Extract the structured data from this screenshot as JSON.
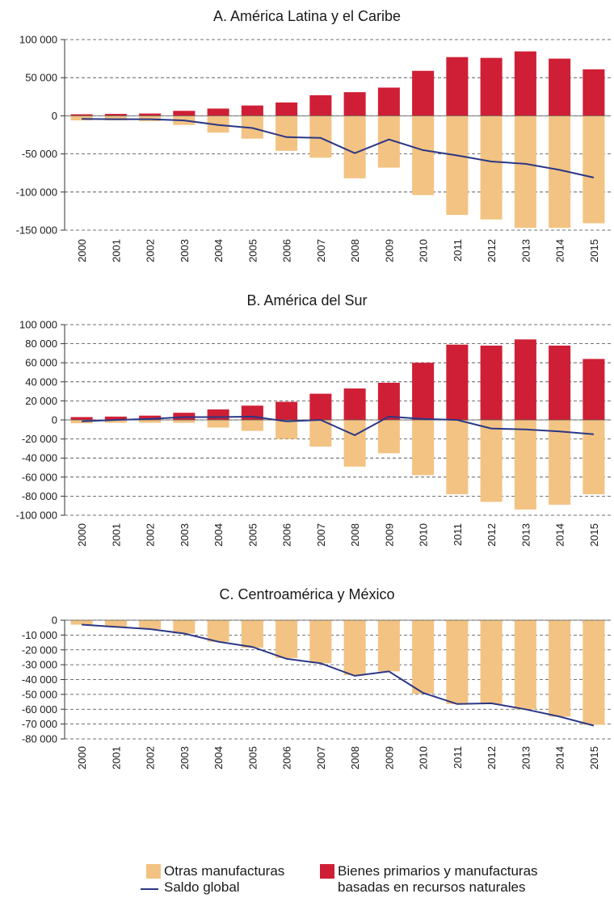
{
  "chart_data": [
    {
      "type": "bar",
      "title": "A. América Latina y el Caribe",
      "categories": [
        "2000",
        "2001",
        "2002",
        "2003",
        "2004",
        "2005",
        "2006",
        "2007",
        "2008",
        "2009",
        "2010",
        "2011",
        "2012",
        "2013",
        "2014",
        "2015"
      ],
      "ylim": [
        -150000,
        100000
      ],
      "yticks": [
        100000,
        50000,
        0,
        -50000,
        -100000,
        -150000
      ],
      "ytick_labels": [
        "100 000",
        "50 000",
        "0",
        "-50 000",
        "-100 000",
        "-150 000"
      ],
      "grid": true,
      "series": [
        {
          "name": "Bienes primarios y manufacturas basadas en recursos naturales",
          "kind": "bar",
          "color": "#cf1f36",
          "values": [
            2000,
            2500,
            3000,
            6500,
            9500,
            13500,
            17500,
            27000,
            31000,
            37000,
            59000,
            77000,
            76000,
            84500,
            75000,
            61000
          ]
        },
        {
          "name": "Otras manufacturas",
          "kind": "bar",
          "color": "#f3c383",
          "values": [
            -6000,
            -6000,
            -7000,
            -12000,
            -22000,
            -30000,
            -46000,
            -55000,
            -82000,
            -68000,
            -104000,
            -130000,
            -136000,
            -147000,
            -147000,
            -141000
          ]
        },
        {
          "name": "Saldo global",
          "kind": "line",
          "color": "#2b3784",
          "values": [
            -4000,
            -4500,
            -4500,
            -6000,
            -12000,
            -16000,
            -28000,
            -29000,
            -49000,
            -31000,
            -45000,
            -52000,
            -60000,
            -63000,
            -71000,
            -81000
          ]
        }
      ]
    },
    {
      "type": "bar",
      "title": "B. América del Sur",
      "categories": [
        "2000",
        "2001",
        "2002",
        "2003",
        "2004",
        "2005",
        "2006",
        "2007",
        "2008",
        "2009",
        "2010",
        "2011",
        "2012",
        "2013",
        "2014",
        "2015"
      ],
      "ylim": [
        -100000,
        100000
      ],
      "yticks": [
        100000,
        80000,
        60000,
        40000,
        20000,
        0,
        -20000,
        -40000,
        -60000,
        -80000,
        -100000
      ],
      "ytick_labels": [
        "100 000",
        "80 000",
        "60 000",
        "40 000",
        "20 000",
        "0",
        "-20 000",
        "-40 000",
        "-60 000",
        "-80 000",
        "-100 000"
      ],
      "grid": true,
      "series": [
        {
          "name": "Bienes primarios y manufacturas basadas en recursos naturales",
          "kind": "bar",
          "color": "#cf1f36",
          "values": [
            3000,
            3500,
            4500,
            7500,
            11000,
            15000,
            19000,
            27500,
            33000,
            39000,
            60000,
            79000,
            78000,
            84500,
            78000,
            64000
          ]
        },
        {
          "name": "Otras manufacturas",
          "kind": "bar",
          "color": "#f3c383",
          "values": [
            -3500,
            -3000,
            -3000,
            -3000,
            -8000,
            -11500,
            -20000,
            -28000,
            -49000,
            -35000,
            -58000,
            -78000,
            -86000,
            -94000,
            -89000,
            -78000
          ]
        },
        {
          "name": "Saldo global",
          "kind": "line",
          "color": "#2b3784",
          "values": [
            -1500,
            0,
            1000,
            3000,
            3000,
            3500,
            -1500,
            0,
            -16000,
            3500,
            1000,
            0,
            -9000,
            -10000,
            -12000,
            -15000
          ]
        }
      ]
    },
    {
      "type": "bar",
      "title": "C. Centroamérica y México",
      "categories": [
        "2000",
        "2001",
        "2002",
        "2003",
        "2004",
        "2005",
        "2006",
        "2007",
        "2008",
        "2009",
        "2010",
        "2011",
        "2012",
        "2013",
        "2014",
        "2015"
      ],
      "ylim": [
        -80000,
        0
      ],
      "yticks": [
        0,
        -10000,
        -20000,
        -30000,
        -40000,
        -50000,
        -60000,
        -70000,
        -80000
      ],
      "ytick_labels": [
        "0",
        "-10 000",
        "-20 000",
        "-30 000",
        "-40 000",
        "-50 000",
        "-60 000",
        "-70 000",
        "-80 000"
      ],
      "grid": true,
      "series": [
        {
          "name": "Bienes primarios y manufacturas basadas en recursos naturales",
          "kind": "bar",
          "color": "#cf1f36",
          "values": [
            0,
            0,
            0,
            0,
            -800,
            -1000,
            -800,
            -1000,
            -1000,
            -500,
            -500,
            -1000,
            -1200,
            -1000,
            -1500,
            -2500
          ]
        },
        {
          "name": "Otras manufacturas",
          "kind": "bar",
          "color": "#f3c383",
          "values": [
            -3000,
            -4500,
            -6000,
            -9000,
            -14500,
            -18500,
            -25500,
            -29000,
            -37000,
            -34500,
            -49500,
            -56500,
            -56500,
            -60000,
            -65000,
            -70500
          ]
        },
        {
          "name": "Saldo global",
          "kind": "line",
          "color": "#2b3784",
          "values": [
            -3000,
            -4500,
            -6000,
            -9000,
            -14500,
            -18000,
            -26000,
            -29000,
            -37500,
            -34500,
            -49000,
            -56500,
            -56000,
            -60000,
            -65000,
            -71000
          ]
        }
      ]
    }
  ],
  "legend": {
    "items": [
      {
        "label": "Otras manufacturas",
        "color": "#f3c383"
      },
      {
        "label": "Bienes primarios y manufacturas",
        "label2": "basadas en recursos naturales",
        "color": "#cf1f36"
      },
      {
        "label": "Saldo global",
        "color": "#2b3784"
      }
    ]
  }
}
